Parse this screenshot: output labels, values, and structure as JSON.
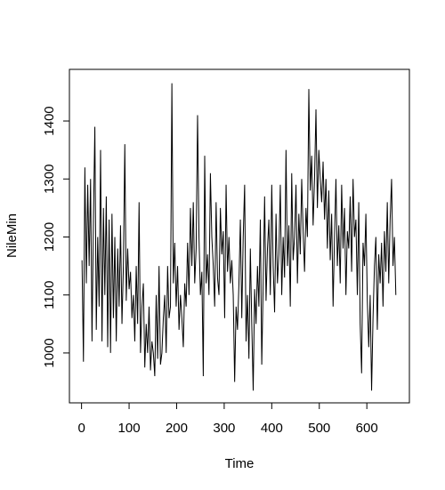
{
  "chart_data": {
    "type": "line",
    "xlabel": "Time",
    "ylabel": "NileMin",
    "color": "#000000",
    "x": [
      1,
      4,
      7,
      10,
      13,
      16,
      19,
      22,
      25,
      28,
      31,
      34,
      37,
      40,
      43,
      46,
      49,
      52,
      55,
      58,
      61,
      64,
      67,
      70,
      73,
      76,
      79,
      82,
      85,
      88,
      91,
      94,
      97,
      100,
      103,
      106,
      109,
      112,
      115,
      118,
      121,
      124,
      127,
      130,
      133,
      136,
      139,
      142,
      145,
      148,
      151,
      154,
      157,
      160,
      163,
      166,
      169,
      172,
      175,
      178,
      181,
      184,
      187,
      190,
      193,
      196,
      199,
      202,
      205,
      208,
      211,
      214,
      217,
      220,
      223,
      226,
      229,
      232,
      235,
      238,
      241,
      244,
      247,
      250,
      253,
      256,
      259,
      262,
      265,
      268,
      271,
      274,
      277,
      280,
      283,
      286,
      289,
      292,
      295,
      298,
      301,
      304,
      307,
      310,
      313,
      316,
      319,
      322,
      325,
      328,
      331,
      334,
      337,
      340,
      343,
      346,
      349,
      352,
      355,
      358,
      361,
      364,
      367,
      370,
      373,
      376,
      379,
      382,
      385,
      388,
      391,
      394,
      397,
      400,
      403,
      406,
      409,
      412,
      415,
      418,
      421,
      424,
      427,
      430,
      433,
      436,
      439,
      442,
      445,
      448,
      451,
      454,
      457,
      460,
      463,
      466,
      469,
      472,
      475,
      478,
      481,
      484,
      487,
      490,
      493,
      496,
      499,
      502,
      505,
      508,
      511,
      514,
      517,
      520,
      523,
      526,
      529,
      532,
      535,
      538,
      541,
      544,
      547,
      550,
      553,
      556,
      559,
      562,
      565,
      568,
      571,
      574,
      577,
      580,
      583,
      586,
      589,
      592,
      595,
      598,
      601,
      604,
      607,
      610,
      613,
      616,
      619,
      622,
      625,
      628,
      631,
      634,
      637,
      640,
      643,
      646,
      649,
      652,
      655,
      658,
      661
    ],
    "values": [
      1160,
      985,
      1320,
      1120,
      1290,
      1150,
      1300,
      1020,
      1230,
      1390,
      1040,
      1200,
      1080,
      1350,
      1020,
      1250,
      1100,
      1270,
      1010,
      1230,
      1000,
      1240,
      1060,
      1200,
      1020,
      1180,
      1080,
      1220,
      1050,
      1150,
      1360,
      1090,
      1180,
      1110,
      1140,
      1060,
      1100,
      1020,
      1150,
      1050,
      1260,
      1000,
      1080,
      1120,
      975,
      1050,
      1000,
      1080,
      970,
      1020,
      1000,
      960,
      1100,
      990,
      1150,
      980,
      1000,
      1060,
      1100,
      1000,
      1150,
      1060,
      1080,
      1465,
      1120,
      1190,
      1080,
      1150,
      1040,
      1100,
      1060,
      1010,
      1120,
      1080,
      1190,
      1100,
      1250,
      1150,
      1260,
      1120,
      1180,
      1410,
      1200,
      1100,
      1140,
      960,
      1340,
      1120,
      1170,
      1100,
      1310,
      1200,
      1150,
      1080,
      1260,
      1130,
      1100,
      1250,
      1170,
      1210,
      1060,
      1290,
      1140,
      1200,
      1120,
      1160,
      1100,
      950,
      1080,
      1040,
      1120,
      1230,
      1060,
      1200,
      1290,
      1020,
      1100,
      990,
      1180,
      1050,
      935,
      1110,
      1050,
      1150,
      1080,
      1230,
      980,
      1120,
      1270,
      1090,
      1180,
      1230,
      1100,
      1290,
      1150,
      1070,
      1240,
      1120,
      1170,
      1290,
      1100,
      1200,
      1130,
      1350,
      1150,
      1220,
      1080,
      1310,
      1160,
      1200,
      1290,
      1120,
      1240,
      1170,
      1300,
      1210,
      1140,
      1250,
      1200,
      1455,
      1280,
      1340,
      1220,
      1300,
      1420,
      1250,
      1350,
      1300,
      1260,
      1330,
      1230,
      1300,
      1180,
      1280,
      1160,
      1240,
      1080,
      1200,
      1300,
      1150,
      1220,
      1120,
      1290,
      1180,
      1250,
      1100,
      1210,
      1180,
      1270,
      1140,
      1300,
      1200,
      1230,
      1100,
      1260,
      1050,
      965,
      1190,
      1150,
      1240,
      1090,
      1010,
      1100,
      935,
      1060,
      1150,
      1200,
      1040,
      1170,
      1120,
      1190,
      1080,
      1210,
      1140,
      1260,
      1120,
      1230,
      1300,
      1150,
      1200,
      1100
    ],
    "xlim": [
      -25.5,
      689.5
    ],
    "ylim": [
      914,
      1489
    ],
    "xticks": [
      0,
      100,
      200,
      300,
      400,
      500,
      600
    ],
    "yticks": [
      1000,
      1100,
      1200,
      1300,
      1400
    ]
  }
}
